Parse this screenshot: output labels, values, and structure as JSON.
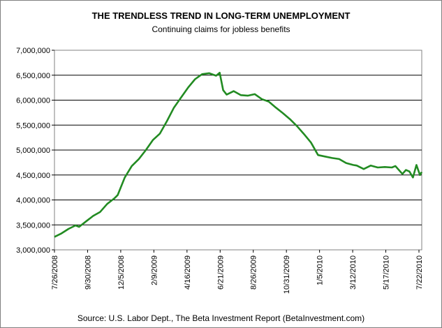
{
  "chart_data": {
    "type": "line",
    "title": "THE TRENDLESS TREND IN LONG-TERM UNEMPLOYMENT",
    "subtitle": "Continuing claims for jobless benefits",
    "source": "Source: U.S. Labor Dept., The Beta Investment Report (BetaInvestment.com)",
    "xlabel": "",
    "ylabel": "",
    "ylim": [
      3000000,
      7000000
    ],
    "y_ticks": [
      "3,000,000",
      "3,500,000",
      "4,000,000",
      "4,500,000",
      "5,000,000",
      "5,500,000",
      "6,000,000",
      "6,500,000",
      "7,000,000"
    ],
    "x_ticks": [
      "7/26/2008",
      "9/30/2008",
      "12/5/2008",
      "2/9/2009",
      "4/16/2009",
      "6/21/2009",
      "8/26/2009",
      "10/31/2009",
      "1/5/2010",
      "3/12/2010",
      "5/17/2010",
      "7/22/2010"
    ],
    "grid": "horizontal",
    "legend": "none",
    "line_color": "#228B22",
    "x": [
      "2008-07-26",
      "2008-08-09",
      "2008-08-23",
      "2008-09-06",
      "2008-09-13",
      "2008-09-27",
      "2008-10-11",
      "2008-10-25",
      "2008-11-08",
      "2008-11-22",
      "2008-11-29",
      "2008-12-13",
      "2008-12-27",
      "2009-01-10",
      "2009-01-24",
      "2009-02-07",
      "2009-02-21",
      "2009-03-07",
      "2009-03-21",
      "2009-04-04",
      "2009-04-18",
      "2009-05-02",
      "2009-05-16",
      "2009-05-30",
      "2009-06-13",
      "2009-06-20",
      "2009-06-27",
      "2009-07-04",
      "2009-07-18",
      "2009-08-01",
      "2009-08-15",
      "2009-08-29",
      "2009-09-12",
      "2009-09-26",
      "2009-10-10",
      "2009-10-24",
      "2009-11-07",
      "2009-11-21",
      "2009-12-05",
      "2009-12-19",
      "2010-01-02",
      "2010-01-16",
      "2010-01-30",
      "2010-02-13",
      "2010-02-27",
      "2010-03-13",
      "2010-03-20",
      "2010-04-03",
      "2010-04-17",
      "2010-05-01",
      "2010-05-15",
      "2010-05-29",
      "2010-06-05",
      "2010-06-19",
      "2010-06-26",
      "2010-07-03",
      "2010-07-10",
      "2010-07-17",
      "2010-07-24",
      "2010-07-31"
    ],
    "y": [
      3260000,
      3330000,
      3420000,
      3490000,
      3460000,
      3570000,
      3680000,
      3760000,
      3920000,
      4030000,
      4100000,
      4450000,
      4680000,
      4820000,
      5000000,
      5200000,
      5330000,
      5580000,
      5850000,
      6050000,
      6250000,
      6420000,
      6520000,
      6540000,
      6490000,
      6550000,
      6200000,
      6110000,
      6180000,
      6100000,
      6090000,
      6120000,
      6020000,
      5970000,
      5850000,
      5740000,
      5620000,
      5480000,
      5320000,
      5150000,
      4900000,
      4870000,
      4840000,
      4820000,
      4740000,
      4700000,
      4690000,
      4620000,
      4690000,
      4650000,
      4660000,
      4650000,
      4680000,
      4520000,
      4600000,
      4570000,
      4450000,
      4700000,
      4500000,
      4560000
    ]
  }
}
